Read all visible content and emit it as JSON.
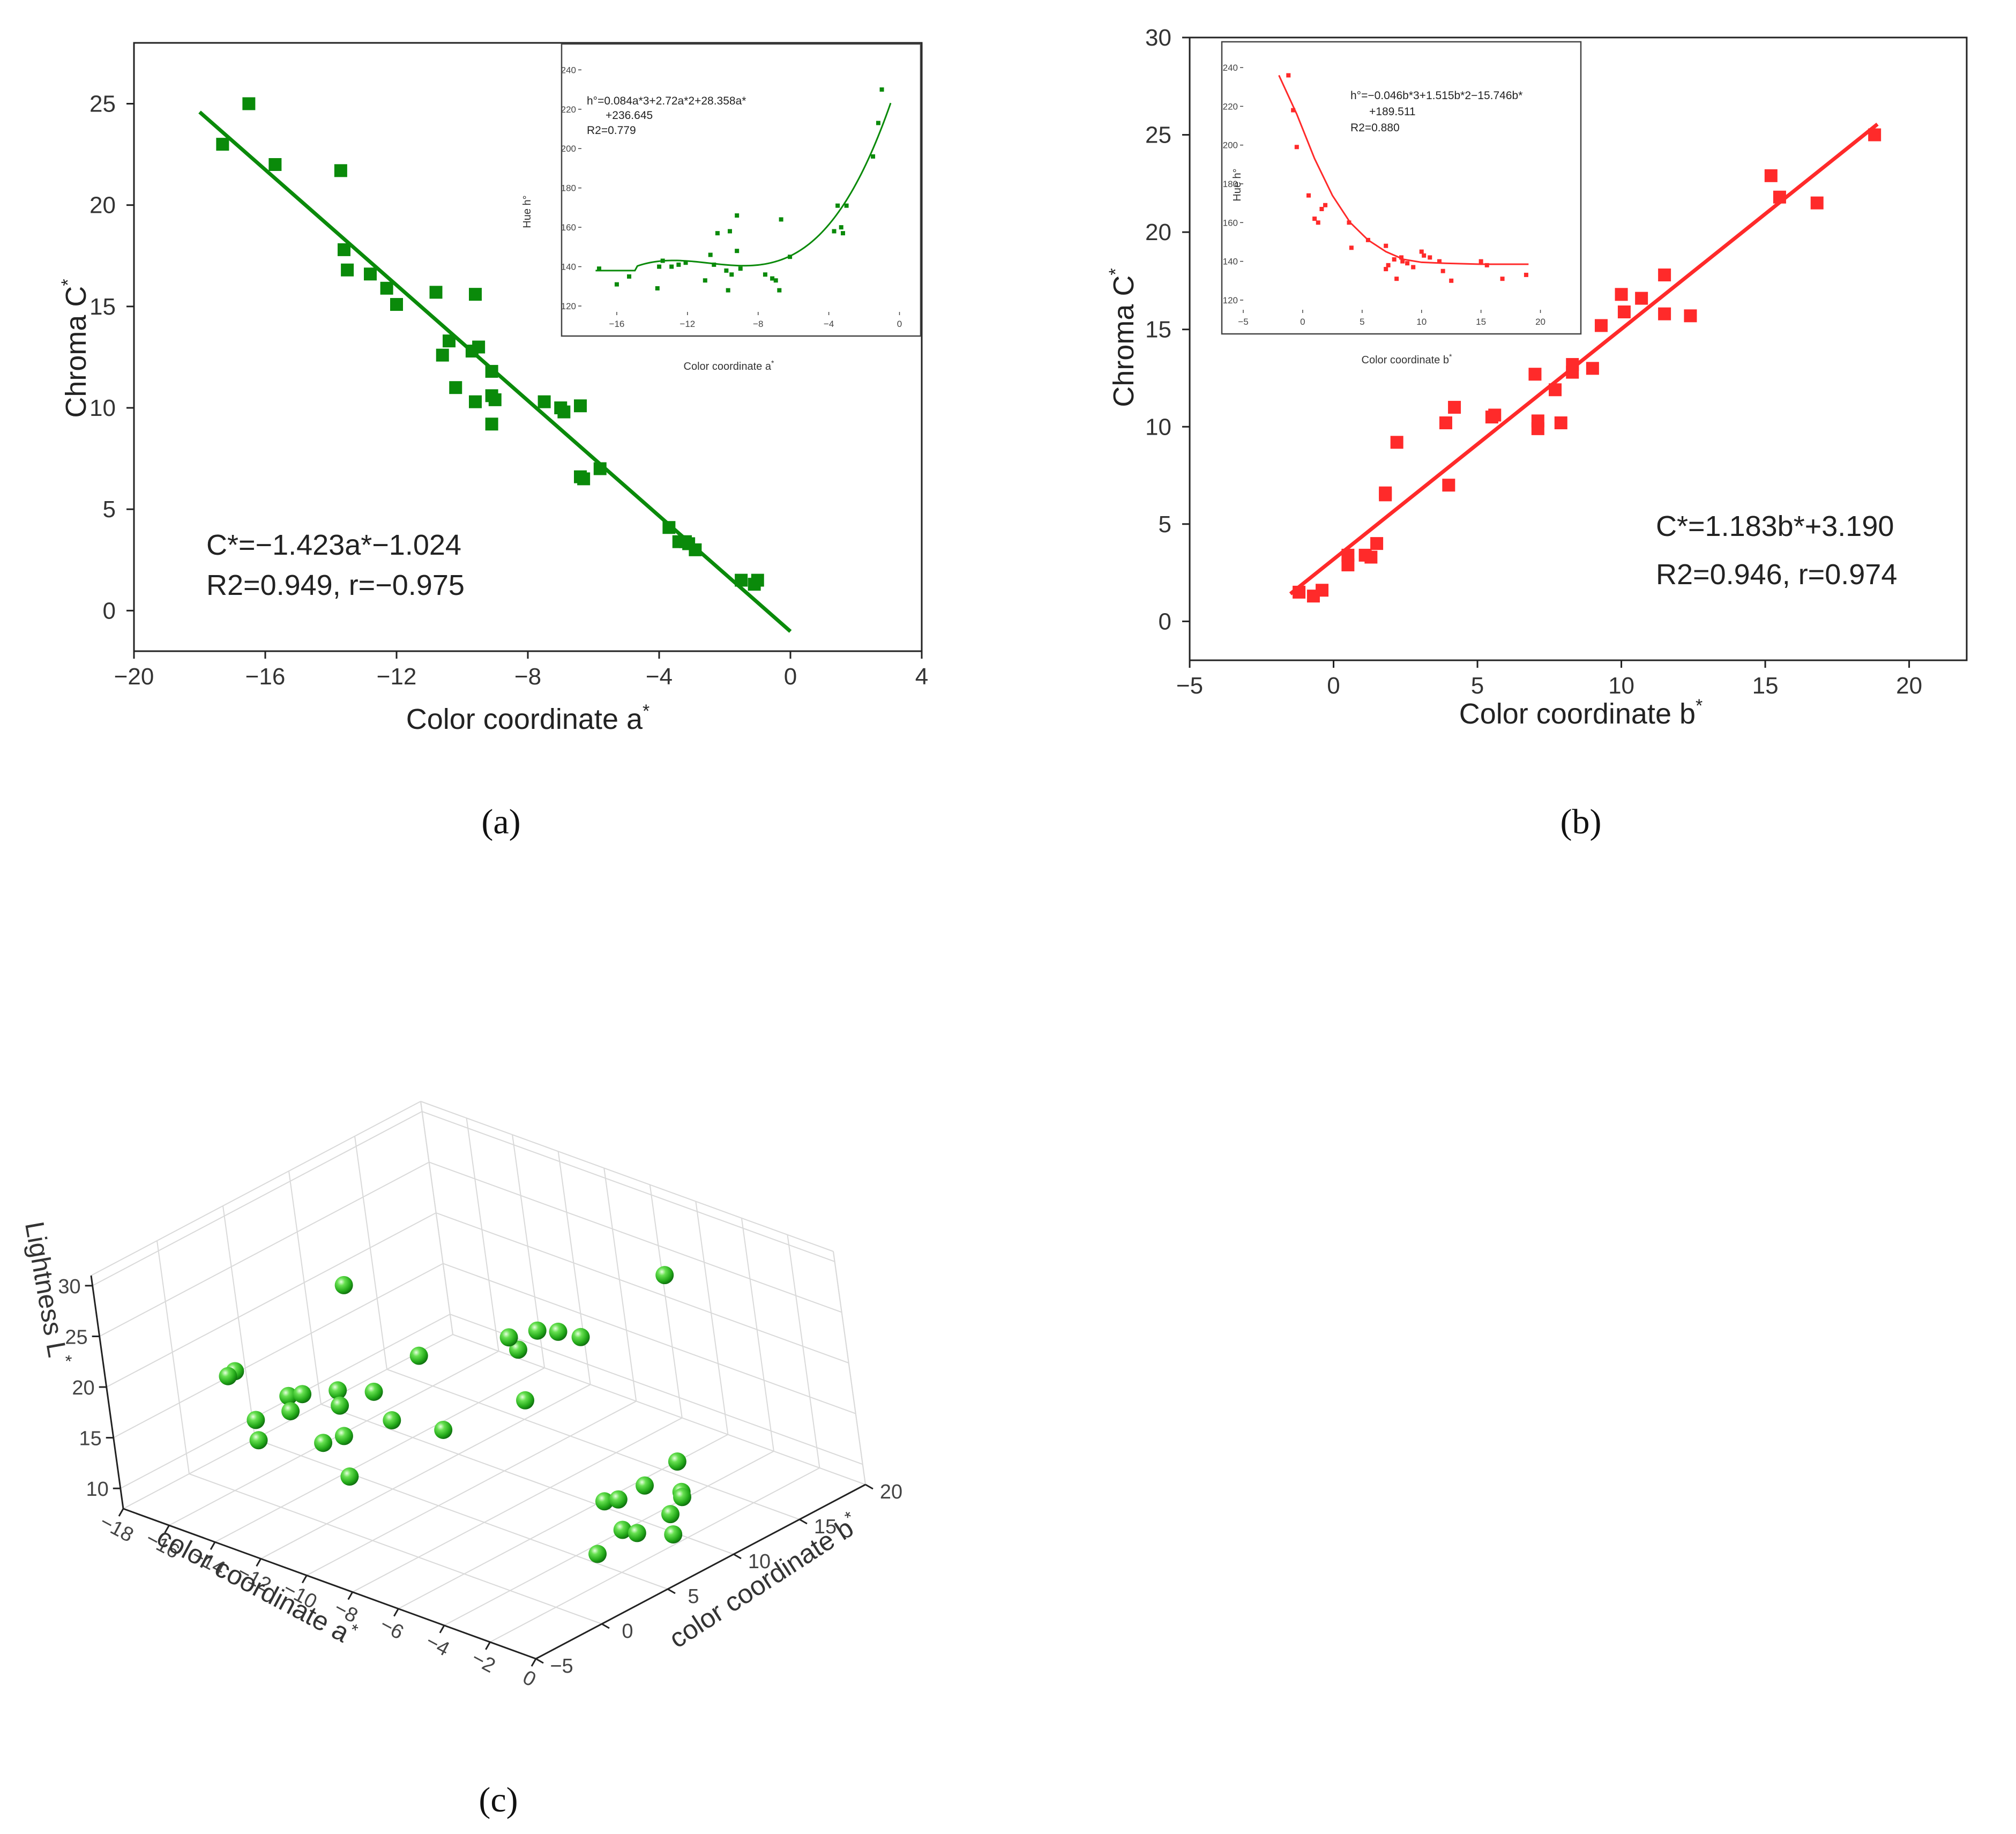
{
  "chart_data": [
    {
      "id": "a",
      "type": "scatter",
      "caption": "(a)",
      "color": "#0a8a0a",
      "xlabel": "Color coordinate a",
      "xlabel_sup": "*",
      "ylabel": "Chroma C",
      "ylabel_sup": "*",
      "xlim": [
        -20,
        4
      ],
      "ylim": [
        -2,
        28
      ],
      "xticks": [
        -20,
        -16,
        -12,
        -8,
        -4,
        0,
        4
      ],
      "yticks": [
        0,
        5,
        10,
        15,
        20,
        25
      ],
      "fit": {
        "slope": -1.423,
        "intercept": -1.024,
        "x_range": [
          -18,
          0
        ]
      },
      "equation": "C*=−1.423a*−1.024",
      "stats": "R2=0.949, r=−0.975",
      "points": [
        [
          -17.3,
          23.0
        ],
        [
          -16.5,
          25.0
        ],
        [
          -15.7,
          22.0
        ],
        [
          -13.7,
          21.7
        ],
        [
          -13.6,
          17.8
        ],
        [
          -13.5,
          16.8
        ],
        [
          -12.8,
          16.6
        ],
        [
          -12.3,
          15.9
        ],
        [
          -12.0,
          15.1
        ],
        [
          -10.8,
          15.7
        ],
        [
          -10.6,
          12.6
        ],
        [
          -10.4,
          13.3
        ],
        [
          -10.2,
          11.0
        ],
        [
          -9.7,
          12.8
        ],
        [
          -9.6,
          10.3
        ],
        [
          -9.5,
          13.0
        ],
        [
          -9.6,
          15.6
        ],
        [
          -9.1,
          11.8
        ],
        [
          -9.1,
          10.6
        ],
        [
          -9.0,
          10.4
        ],
        [
          -9.1,
          9.2
        ],
        [
          -7.5,
          10.3
        ],
        [
          -7.0,
          10.0
        ],
        [
          -6.9,
          9.8
        ],
        [
          -6.4,
          10.1
        ],
        [
          -6.4,
          6.6
        ],
        [
          -6.3,
          6.5
        ],
        [
          -5.8,
          7.0
        ],
        [
          -3.7,
          4.1
        ],
        [
          -3.4,
          3.4
        ],
        [
          -3.2,
          3.4
        ],
        [
          -3.1,
          3.3
        ],
        [
          -2.9,
          3.0
        ],
        [
          -1.5,
          1.5
        ],
        [
          -1.1,
          1.3
        ],
        [
          -1.0,
          1.5
        ]
      ],
      "inset": {
        "xlabel": "Color coordinate a",
        "xlabel_sup": "*",
        "ylabel": "Hue h°",
        "xlim": [
          -18,
          0.5
        ],
        "ylim": [
          117,
          245
        ],
        "xticks": [
          -16,
          -12,
          -8,
          -4,
          0
        ],
        "yticks": [
          120,
          140,
          160,
          180,
          200,
          220,
          240
        ],
        "equation_lines": [
          "h°=0.084a*3+2.72a*2+28.358a*",
          "+236.645",
          "R2=0.779"
        ],
        "poly": [
          0.084,
          2.72,
          28.358,
          236.645
        ],
        "poly_floor": 138,
        "curve_range": [
          -17.2,
          -0.5
        ],
        "points": [
          [
            -17.0,
            139
          ],
          [
            -16.0,
            131
          ],
          [
            -15.3,
            135
          ],
          [
            -13.7,
            129
          ],
          [
            -13.6,
            140
          ],
          [
            -13.4,
            143
          ],
          [
            -12.9,
            140
          ],
          [
            -12.5,
            141
          ],
          [
            -12.1,
            142
          ],
          [
            -11.0,
            133
          ],
          [
            -10.7,
            146
          ],
          [
            -10.5,
            141
          ],
          [
            -10.3,
            157
          ],
          [
            -9.8,
            138
          ],
          [
            -9.7,
            128
          ],
          [
            -9.6,
            158
          ],
          [
            -9.5,
            136
          ],
          [
            -9.2,
            148
          ],
          [
            -9.2,
            166
          ],
          [
            -9.0,
            139
          ],
          [
            -7.6,
            136
          ],
          [
            -7.2,
            134
          ],
          [
            -7.0,
            133
          ],
          [
            -6.8,
            128
          ],
          [
            -6.7,
            164
          ],
          [
            -6.2,
            145
          ],
          [
            -3.7,
            158
          ],
          [
            -3.5,
            171
          ],
          [
            -3.3,
            160
          ],
          [
            -3.2,
            157
          ],
          [
            -3.0,
            171
          ],
          [
            -1.5,
            196
          ],
          [
            -1.2,
            213
          ],
          [
            -1.0,
            230
          ]
        ]
      }
    },
    {
      "id": "b",
      "type": "scatter",
      "caption": "(b)",
      "color": "#ff2a2a",
      "xlabel": "Color coordinate b",
      "xlabel_sup": "*",
      "ylabel": "Chroma C",
      "ylabel_sup": "*",
      "xlim": [
        -5,
        22
      ],
      "ylim": [
        -2,
        30
      ],
      "xticks": [
        -5,
        0,
        5,
        10,
        15,
        20
      ],
      "yticks": [
        0,
        5,
        10,
        15,
        20,
        25,
        30
      ],
      "fit": {
        "slope": 1.183,
        "intercept": 3.19,
        "x_range": [
          -1.5,
          18.9
        ]
      },
      "equation": "C*=1.183b*+3.190",
      "stats": "R2=0.946, r=0.974",
      "points": [
        [
          -1.2,
          1.5
        ],
        [
          -0.7,
          1.3
        ],
        [
          -0.4,
          1.6
        ],
        [
          0.5,
          2.9
        ],
        [
          0.5,
          3.4
        ],
        [
          1.1,
          3.4
        ],
        [
          1.3,
          3.3
        ],
        [
          1.5,
          4.0
        ],
        [
          1.8,
          6.5
        ],
        [
          1.8,
          6.6
        ],
        [
          2.2,
          9.2
        ],
        [
          3.9,
          10.2
        ],
        [
          4.0,
          7.0
        ],
        [
          4.2,
          11.0
        ],
        [
          5.5,
          10.5
        ],
        [
          5.6,
          10.6
        ],
        [
          7.0,
          12.7
        ],
        [
          7.1,
          10.3
        ],
        [
          7.1,
          9.9
        ],
        [
          7.7,
          11.9
        ],
        [
          7.9,
          10.2
        ],
        [
          8.3,
          13.2
        ],
        [
          8.3,
          12.8
        ],
        [
          9.0,
          13.0
        ],
        [
          9.3,
          15.2
        ],
        [
          10.0,
          16.8
        ],
        [
          10.1,
          15.9
        ],
        [
          10.7,
          16.6
        ],
        [
          11.5,
          17.8
        ],
        [
          11.5,
          15.8
        ],
        [
          12.4,
          15.7
        ],
        [
          15.2,
          22.9
        ],
        [
          15.5,
          21.8
        ],
        [
          16.8,
          21.5
        ],
        [
          18.8,
          25.0
        ]
      ],
      "inset": {
        "xlabel": "Color coordinate b",
        "xlabel_sup": "*",
        "ylabel": "Hue h°",
        "xlim": [
          -5,
          22.5
        ],
        "ylim": [
          115,
          245
        ],
        "xticks": [
          -5,
          0,
          5,
          10,
          15,
          20
        ],
        "yticks": [
          120,
          140,
          160,
          180,
          200,
          220,
          240
        ],
        "equation_lines": [
          "h°=−0.046b*3+1.515b*2−15.746b*",
          "+189.511",
          "R2=0.880"
        ],
        "curve": [
          [
            -2.0,
            236
          ],
          [
            -0.5,
            216
          ],
          [
            1,
            193
          ],
          [
            2.5,
            174
          ],
          [
            4,
            160
          ],
          [
            5.5,
            151
          ],
          [
            7,
            145
          ],
          [
            8.5,
            141
          ],
          [
            10,
            139.5
          ],
          [
            12,
            139
          ],
          [
            15,
            138.5
          ],
          [
            19,
            138.5
          ]
        ],
        "points": [
          [
            -1.2,
            236
          ],
          [
            -0.8,
            218
          ],
          [
            -0.5,
            199
          ],
          [
            0.5,
            174
          ],
          [
            1.0,
            162
          ],
          [
            1.3,
            160
          ],
          [
            1.6,
            167
          ],
          [
            1.9,
            169
          ],
          [
            3.9,
            160
          ],
          [
            4.1,
            147
          ],
          [
            5.5,
            151
          ],
          [
            7.0,
            136
          ],
          [
            7.0,
            148
          ],
          [
            7.2,
            138
          ],
          [
            7.7,
            141
          ],
          [
            7.9,
            131
          ],
          [
            8.3,
            142
          ],
          [
            8.4,
            140
          ],
          [
            8.8,
            139
          ],
          [
            9.3,
            137
          ],
          [
            10.0,
            145
          ],
          [
            10.2,
            143
          ],
          [
            10.7,
            142
          ],
          [
            11.5,
            140
          ],
          [
            11.8,
            135
          ],
          [
            12.5,
            130
          ],
          [
            15.0,
            140
          ],
          [
            15.5,
            138
          ],
          [
            16.8,
            131
          ],
          [
            18.8,
            133
          ]
        ]
      }
    },
    {
      "id": "c",
      "type": "scatter3d",
      "caption": "(c)",
      "color": "#33cc22",
      "xlabel": "color coordinate a",
      "xlabel_sup": "*",
      "ylabel": "color coordinate b",
      "ylabel_sup": "*",
      "zlabel": "Lightness L",
      "zlabel_sup": "*",
      "xticks": [
        -18,
        -16,
        -14,
        -12,
        -10,
        -8,
        -6,
        -4,
        -2,
        0
      ],
      "yticks": [
        -5,
        0,
        5,
        10,
        15,
        20
      ],
      "zticks": [
        10,
        15,
        20,
        25,
        30
      ],
      "points": [
        [
          -11,
          2,
          31
        ],
        [
          -5,
          6,
          28.7
        ],
        [
          -4,
          14,
          29.5
        ],
        [
          -12,
          -5,
          26.5
        ],
        [
          -8,
          2,
          26.5
        ],
        [
          -6,
          6,
          26
        ],
        [
          -5,
          9,
          26
        ],
        [
          -6,
          9,
          25.7
        ],
        [
          -7,
          7,
          25.7
        ],
        [
          -13,
          -4,
          24.5
        ],
        [
          -11,
          -3,
          23.5
        ],
        [
          -11,
          -2,
          23
        ],
        [
          -10,
          -1,
          23.5
        ],
        [
          -9,
          0,
          23.5
        ],
        [
          -11,
          -3,
          22
        ],
        [
          -10,
          -1,
          22
        ],
        [
          -6,
          6,
          21
        ],
        [
          -12,
          -4,
          21
        ],
        [
          -9,
          1,
          20
        ],
        [
          -12,
          -4,
          19
        ],
        [
          -10,
          -1,
          19
        ],
        [
          -11,
          -1,
          17.5
        ],
        [
          -8,
          3,
          18.5
        ],
        [
          -10,
          -1,
          15
        ],
        [
          -2,
          10,
          15.5
        ],
        [
          -3,
          6,
          13.5
        ],
        [
          -3,
          7,
          13
        ],
        [
          -3,
          9,
          13
        ],
        [
          -2,
          10,
          12.5
        ],
        [
          -2,
          10,
          12
        ],
        [
          -2,
          9,
          11
        ],
        [
          -3,
          7,
          10
        ],
        [
          -3,
          5,
          9
        ],
        [
          -3,
          8,
          9
        ],
        [
          -2,
          9,
          9
        ]
      ]
    }
  ]
}
